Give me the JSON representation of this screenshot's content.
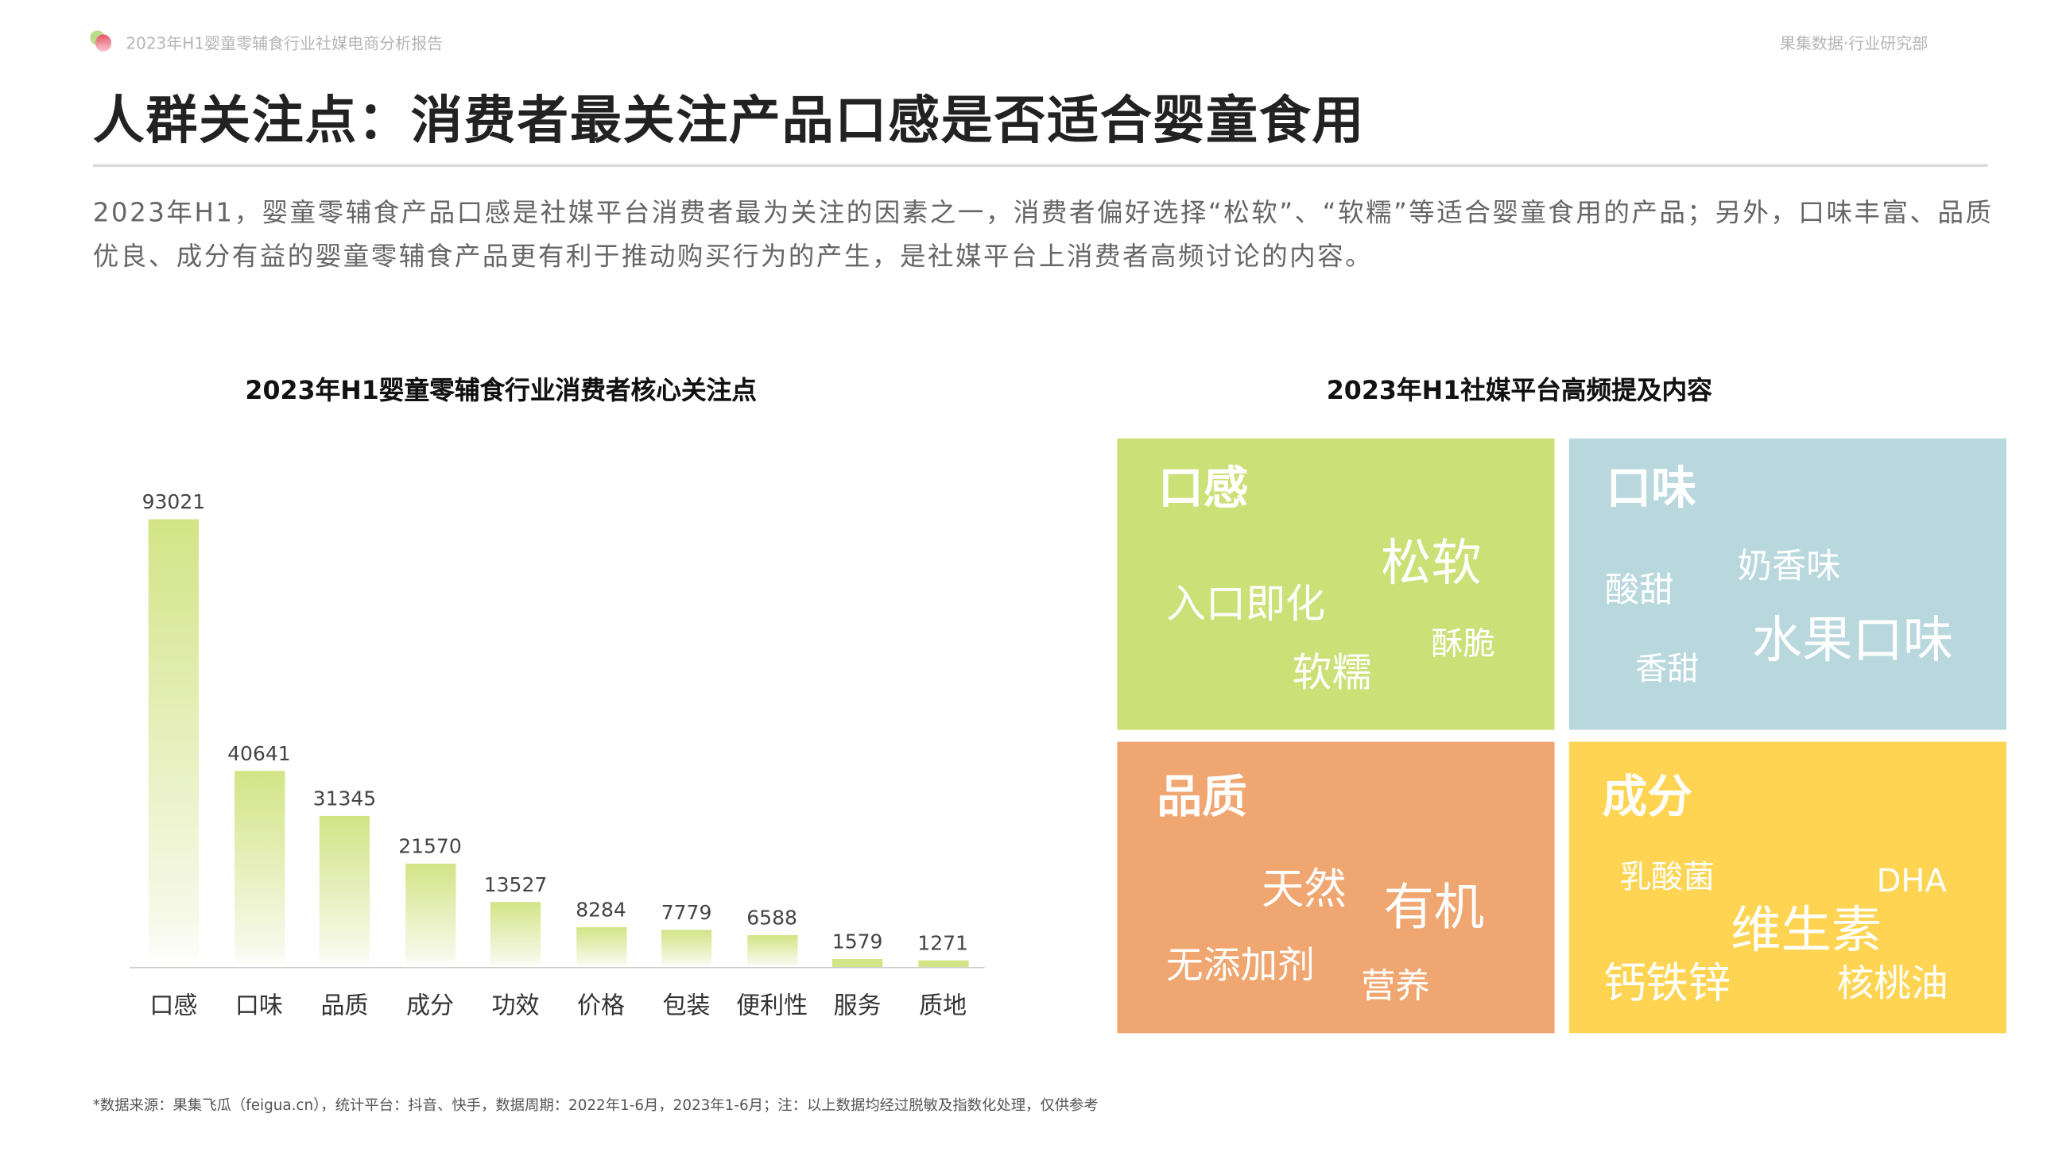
{
  "header": {
    "report_title": "2023年H1婴童零辅食行业社媒电商分析报告",
    "org": "果集数据·行业研究部"
  },
  "title": "人群关注点：消费者最关注产品口感是否适合婴童食用",
  "description": "2023年H1，婴童零辅食产品口感是社媒平台消费者最为关注的因素之一，消费者偏好选择“松软”、“软糯”等适合婴童食用的产品；另外，口味丰富、品质优良、成分有益的婴童零辅食产品更有利于推动购买行为的产生，是社媒平台上消费者高频讨论的内容。",
  "chart_data": {
    "type": "bar",
    "title": "2023年H1婴童零辅食行业消费者核心关注点",
    "categories": [
      "口感",
      "口味",
      "品质",
      "成分",
      "功效",
      "价格",
      "包装",
      "便利性",
      "服务",
      "质地"
    ],
    "values": [
      93021,
      40641,
      31345,
      21570,
      13527,
      8284,
      7779,
      6588,
      1579,
      1271
    ],
    "xlabel": "",
    "ylabel": "",
    "ylim": [
      0,
      93021
    ],
    "bar_color": "#d3e486"
  },
  "wordcloud": {
    "title": "2023年H1社媒平台高频提及内容",
    "panels": [
      {
        "heading": "口感",
        "color": "#cbe077",
        "words": [
          "松软",
          "入口即化",
          "酥脆",
          "软糯"
        ]
      },
      {
        "heading": "口味",
        "color": "#b9d8de",
        "words": [
          "酸甜",
          "奶香味",
          "水果口味",
          "香甜"
        ]
      },
      {
        "heading": "品质",
        "color": "#f0a670",
        "words": [
          "天然",
          "有机",
          "无添加剂",
          "营养"
        ]
      },
      {
        "heading": "成分",
        "color": "#fed452",
        "words": [
          "乳酸菌",
          "DHA",
          "维生素",
          "钙铁锌",
          "核桃油"
        ]
      }
    ]
  },
  "footnote": "*数据来源：果集飞瓜（feigua.cn），统计平台：抖音、快手，数据周期：2022年1-6月，2023年1-6月；注：以上数据均经过脱敏及指数化处理，仅供参考"
}
